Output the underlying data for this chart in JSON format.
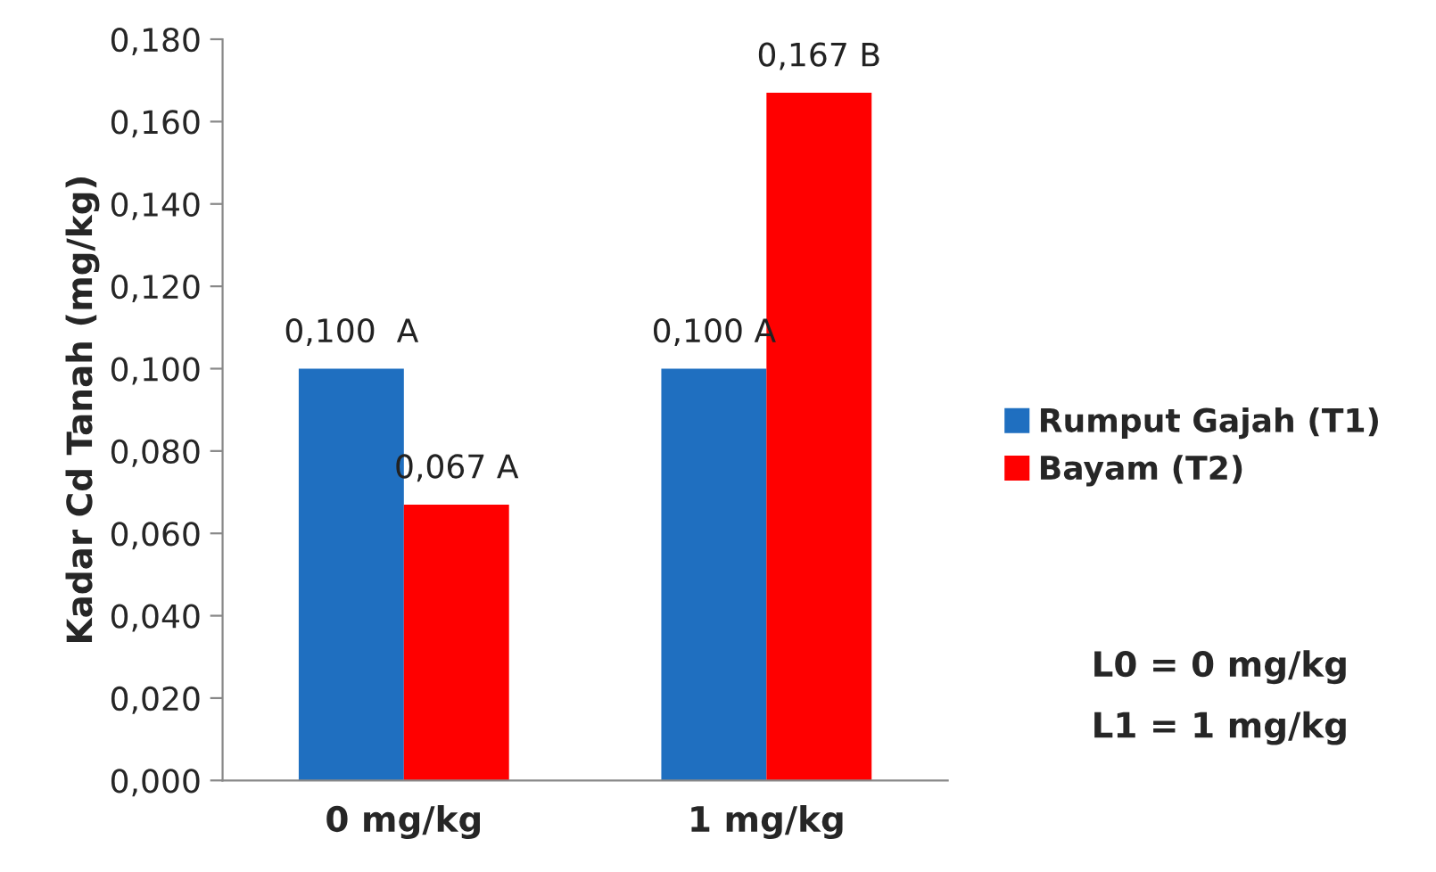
{
  "chart_data": {
    "type": "bar",
    "ylabel": "Kadar Cd Tanah (mg/kg)",
    "categories": [
      "0 mg/kg",
      "1 mg/kg"
    ],
    "series": [
      {
        "name": "Rumput Gajah (T1)",
        "color": "#1f6fc0",
        "values": [
          0.1,
          0.1
        ],
        "value_labels": [
          "0,100  A",
          "0,100 A"
        ]
      },
      {
        "name": "Bayam (T2)",
        "color": "#ff0000",
        "values": [
          0.067,
          0.167
        ],
        "value_labels": [
          "0,067 A",
          "0,167 B"
        ]
      }
    ],
    "ylim": [
      0,
      0.18
    ],
    "yticks": [
      {
        "value": 0,
        "label": "0,000"
      },
      {
        "value": 0.02,
        "label": "0,020"
      },
      {
        "value": 0.04,
        "label": "0,040"
      },
      {
        "value": 0.06,
        "label": "0,060"
      },
      {
        "value": 0.08,
        "label": "0,080"
      },
      {
        "value": 0.1,
        "label": "0,100"
      },
      {
        "value": 0.12,
        "label": "0,120"
      },
      {
        "value": 0.14,
        "label": "0,140"
      },
      {
        "value": 0.16,
        "label": "0,160"
      },
      {
        "value": 0.18,
        "label": "0,180"
      }
    ],
    "grid": false,
    "legend": "right",
    "annotations": [
      "L0 = 0 mg/kg",
      "L1 = 1 mg/kg"
    ]
  }
}
